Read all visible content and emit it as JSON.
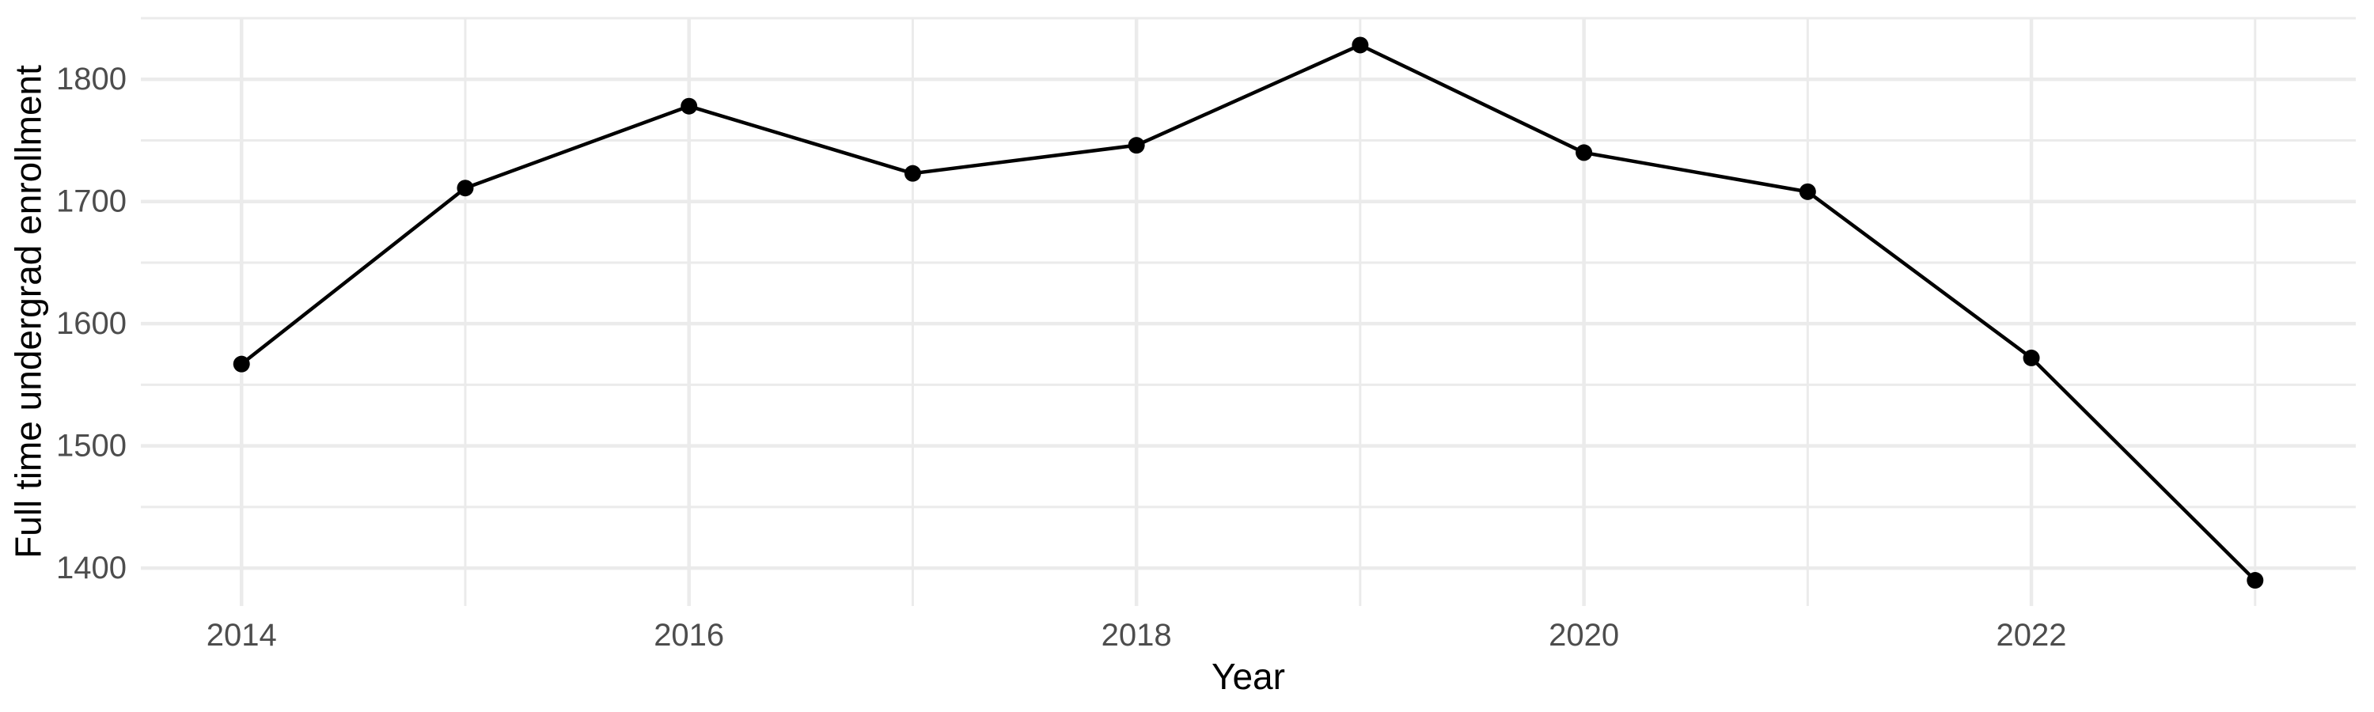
{
  "chart_data": {
    "type": "line",
    "title": "",
    "xlabel": "Year",
    "ylabel": "Full time undergrad enrollment",
    "x": [
      2014,
      2015,
      2016,
      2017,
      2018,
      2019,
      2020,
      2021,
      2022,
      2023
    ],
    "series": [
      {
        "name": "Full time undergrad enrollment",
        "values": [
          1567,
          1711,
          1778,
          1723,
          1746,
          1828,
          1740,
          1708,
          1572,
          1390
        ]
      }
    ],
    "xlim": [
      2013.55,
      2023.45
    ],
    "ylim": [
      1369,
      1850
    ],
    "x_ticks": {
      "major": [
        2014,
        2016,
        2018,
        2020,
        2022
      ],
      "minor": [
        2015,
        2017,
        2019,
        2021,
        2023
      ],
      "labels": [
        "2014",
        "2016",
        "2018",
        "2020",
        "2022"
      ]
    },
    "y_ticks": {
      "major": [
        1400,
        1500,
        1600,
        1700,
        1800
      ],
      "minor": [
        1450,
        1550,
        1650,
        1750,
        1850
      ],
      "labels": [
        "1400",
        "1500",
        "1600",
        "1700",
        "1800"
      ]
    },
    "grid": "major and minor gridlines, no axis lines, no tick marks",
    "legend": "none",
    "marker": "filled-circle",
    "colors": {
      "line": "#000000",
      "point": "#000000",
      "grid": "#ebebeb",
      "tick_label": "#4d4d4d",
      "axis_title": "#000000",
      "background": "#ffffff"
    }
  }
}
